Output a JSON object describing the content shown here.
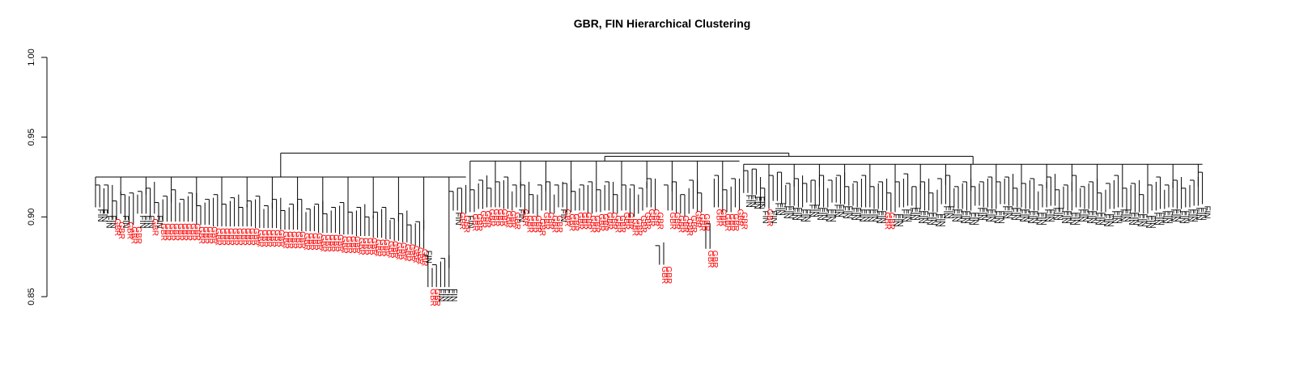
{
  "chart_data": {
    "type": "dendrogram",
    "title": "GBR, FIN Hierarchical Clustering",
    "ylabel": "",
    "ylim": [
      0.85,
      1.0
    ],
    "yticks": [
      0.85,
      0.9,
      0.95,
      1.0
    ],
    "ytick_labels": [
      "0.85",
      "0.90",
      "0.95",
      "1.00"
    ],
    "root_height": 0.94,
    "colors": {
      "GBR": "#ff0000",
      "FIN": "#000000"
    },
    "clusters": [
      {
        "height": 0.925,
        "leaves": [
          "FIN",
          "FIN",
          "FIN",
          "FIN",
          "GBR",
          "GBR",
          "FIN",
          "GBR",
          "GBR",
          "GBR",
          "FIN",
          "FIN",
          "FIN",
          "GBR",
          "FIN",
          "GBR",
          "GBR",
          "GBR",
          "GBR",
          "GBR",
          "GBR",
          "GBR",
          "GBR",
          "GBR",
          "GBR",
          "GBR",
          "GBR",
          "GBR",
          "GBR",
          "GBR",
          "GBR",
          "GBR",
          "GBR",
          "GBR",
          "GBR",
          "GBR",
          "GBR",
          "GBR",
          "GBR",
          "GBR",
          "GBR",
          "GBR",
          "GBR",
          "GBR",
          "GBR",
          "GBR",
          "GBR",
          "GBR",
          "GBR",
          "GBR",
          "GBR",
          "GBR",
          "GBR",
          "GBR",
          "GBR",
          "GBR",
          "GBR",
          "GBR",
          "GBR",
          "GBR",
          "GBR",
          "GBR",
          "GBR",
          "GBR",
          "GBR",
          "GBR",
          "GBR",
          "GBR",
          "GBR",
          "GBR",
          "GBR",
          "GBR",
          "GBR",
          "GBR",
          "GBR",
          "GBR",
          "GBR",
          "GBR",
          "FIN",
          "GBR",
          "GBR",
          "FIN",
          "FIN",
          "FIN",
          "FIN",
          "FIN",
          "GBR",
          "GBR",
          "FIN"
        ],
        "leaf_heights": [
          0.906,
          0.906,
          0.902,
          0.902,
          0.9,
          0.898,
          0.902,
          0.898,
          0.895,
          0.895,
          0.902,
          0.902,
          0.902,
          0.9,
          0.902,
          0.897,
          0.897,
          0.897,
          0.897,
          0.897,
          0.897,
          0.897,
          0.897,
          0.897,
          0.895,
          0.895,
          0.895,
          0.895,
          0.894,
          0.894,
          0.894,
          0.894,
          0.894,
          0.894,
          0.894,
          0.894,
          0.894,
          0.894,
          0.893,
          0.893,
          0.893,
          0.893,
          0.893,
          0.893,
          0.892,
          0.892,
          0.892,
          0.892,
          0.892,
          0.891,
          0.891,
          0.891,
          0.891,
          0.89,
          0.89,
          0.89,
          0.89,
          0.89,
          0.889,
          0.889,
          0.889,
          0.889,
          0.888,
          0.888,
          0.888,
          0.888,
          0.887,
          0.887,
          0.887,
          0.886,
          0.886,
          0.885,
          0.885,
          0.884,
          0.884,
          0.883,
          0.882,
          0.881,
          0.88,
          0.856,
          0.856,
          0.856,
          0.856,
          0.856,
          0.856,
          0.904,
          0.904,
          0.902,
          0.902
        ]
      },
      {
        "height": 0.935,
        "leaves": [
          "GBR",
          "GBR",
          "GBR",
          "GBR",
          "GBR",
          "GBR",
          "GBR",
          "GBR",
          "GBR",
          "GBR",
          "GBR",
          "FIN",
          "GBR",
          "GBR",
          "GBR",
          "GBR",
          "GBR",
          "GBR",
          "GBR",
          "GBR",
          "GBR",
          "FIN",
          "GBR",
          "GBR",
          "GBR",
          "GBR",
          "GBR",
          "GBR",
          "GBR",
          "GBR",
          "GBR",
          "GBR",
          "GBR",
          "GBR",
          "GBR",
          "GBR",
          "GBR",
          "GBR",
          "GBR",
          "GBR",
          "GBR",
          "GBR",
          "GBR",
          "GBR",
          "GBR",
          "GBR",
          "GBR",
          "GBR",
          "GBR",
          "GBR",
          "GBR",
          "GBR",
          "GBR",
          "GBR",
          "GBR",
          "GBR",
          "GBR",
          "GBR",
          "GBR",
          "GBR",
          "GBR",
          "GBR",
          "GBR",
          "GBR",
          "GBR"
        ],
        "leaf_heights": [
          0.903,
          0.903,
          0.905,
          0.905,
          0.906,
          0.906,
          0.906,
          0.906,
          0.905,
          0.905,
          0.904,
          0.906,
          0.906,
          0.902,
          0.902,
          0.902,
          0.9,
          0.904,
          0.904,
          0.902,
          0.902,
          0.906,
          0.906,
          0.903,
          0.903,
          0.904,
          0.904,
          0.904,
          0.902,
          0.902,
          0.903,
          0.903,
          0.904,
          0.904,
          0.902,
          0.902,
          0.904,
          0.904,
          0.9,
          0.9,
          0.902,
          0.904,
          0.906,
          0.906,
          0.904,
          0.87,
          0.87,
          0.904,
          0.904,
          0.902,
          0.902,
          0.9,
          0.902,
          0.905,
          0.903,
          0.903,
          0.88,
          0.88,
          0.906,
          0.906,
          0.903,
          0.903,
          0.903,
          0.906,
          0.904
        ]
      },
      {
        "height": 0.933,
        "leaves": [
          "FIN",
          "FIN",
          "FIN",
          "FIN",
          "FIN",
          "GBR",
          "FIN",
          "FIN",
          "FIN",
          "FIN",
          "FIN",
          "FIN",
          "FIN",
          "FIN",
          "FIN",
          "FIN",
          "FIN",
          "FIN",
          "FIN",
          "FIN",
          "FIN",
          "FIN",
          "FIN",
          "FIN",
          "FIN",
          "FIN",
          "FIN",
          "FIN",
          "FIN",
          "FIN",
          "FIN",
          "FIN",
          "FIN",
          "GBR",
          "GBR",
          "FIN",
          "FIN",
          "FIN",
          "FIN",
          "FIN",
          "FIN",
          "FIN",
          "FIN",
          "FIN",
          "FIN",
          "FIN",
          "FIN",
          "FIN",
          "FIN",
          "FIN",
          "FIN",
          "FIN",
          "FIN",
          "FIN",
          "FIN",
          "FIN",
          "FIN",
          "FIN",
          "FIN",
          "FIN",
          "FIN",
          "FIN",
          "FIN",
          "FIN",
          "FIN",
          "FIN",
          "FIN",
          "FIN",
          "FIN",
          "FIN",
          "FIN",
          "FIN",
          "FIN",
          "FIN",
          "FIN",
          "FIN",
          "FIN",
          "FIN",
          "FIN",
          "FIN",
          "FIN",
          "FIN",
          "FIN",
          "FIN",
          "FIN",
          "FIN",
          "FIN",
          "FIN",
          "FIN",
          "FIN",
          "FIN",
          "FIN",
          "FIN",
          "FIN",
          "FIN",
          "FIN",
          "FIN",
          "FIN",
          "FIN",
          "FIN",
          "FIN",
          "FIN",
          "FIN",
          "FIN",
          "FIN",
          "FIN",
          "FIN",
          "FIN",
          "FIN",
          "FIN"
        ],
        "leaf_heights": [
          0.915,
          0.915,
          0.914,
          0.914,
          0.905,
          0.906,
          0.905,
          0.91,
          0.91,
          0.908,
          0.908,
          0.907,
          0.907,
          0.906,
          0.906,
          0.909,
          0.909,
          0.907,
          0.907,
          0.906,
          0.906,
          0.909,
          0.909,
          0.908,
          0.908,
          0.907,
          0.907,
          0.906,
          0.906,
          0.906,
          0.906,
          0.905,
          0.905,
          0.904,
          0.904,
          0.903,
          0.903,
          0.906,
          0.906,
          0.907,
          0.907,
          0.905,
          0.905,
          0.904,
          0.904,
          0.903,
          0.903,
          0.908,
          0.908,
          0.906,
          0.906,
          0.905,
          0.905,
          0.904,
          0.904,
          0.907,
          0.907,
          0.906,
          0.906,
          0.905,
          0.905,
          0.908,
          0.908,
          0.907,
          0.907,
          0.906,
          0.906,
          0.905,
          0.905,
          0.904,
          0.904,
          0.906,
          0.906,
          0.907,
          0.907,
          0.905,
          0.905,
          0.904,
          0.904,
          0.906,
          0.906,
          0.905,
          0.905,
          0.904,
          0.904,
          0.903,
          0.903,
          0.905,
          0.905,
          0.906,
          0.906,
          0.904,
          0.904,
          0.903,
          0.903,
          0.902,
          0.902,
          0.904,
          0.904,
          0.905,
          0.905,
          0.906,
          0.906,
          0.905,
          0.905,
          0.906,
          0.906,
          0.907,
          0.907,
          0.908
        ]
      }
    ]
  }
}
